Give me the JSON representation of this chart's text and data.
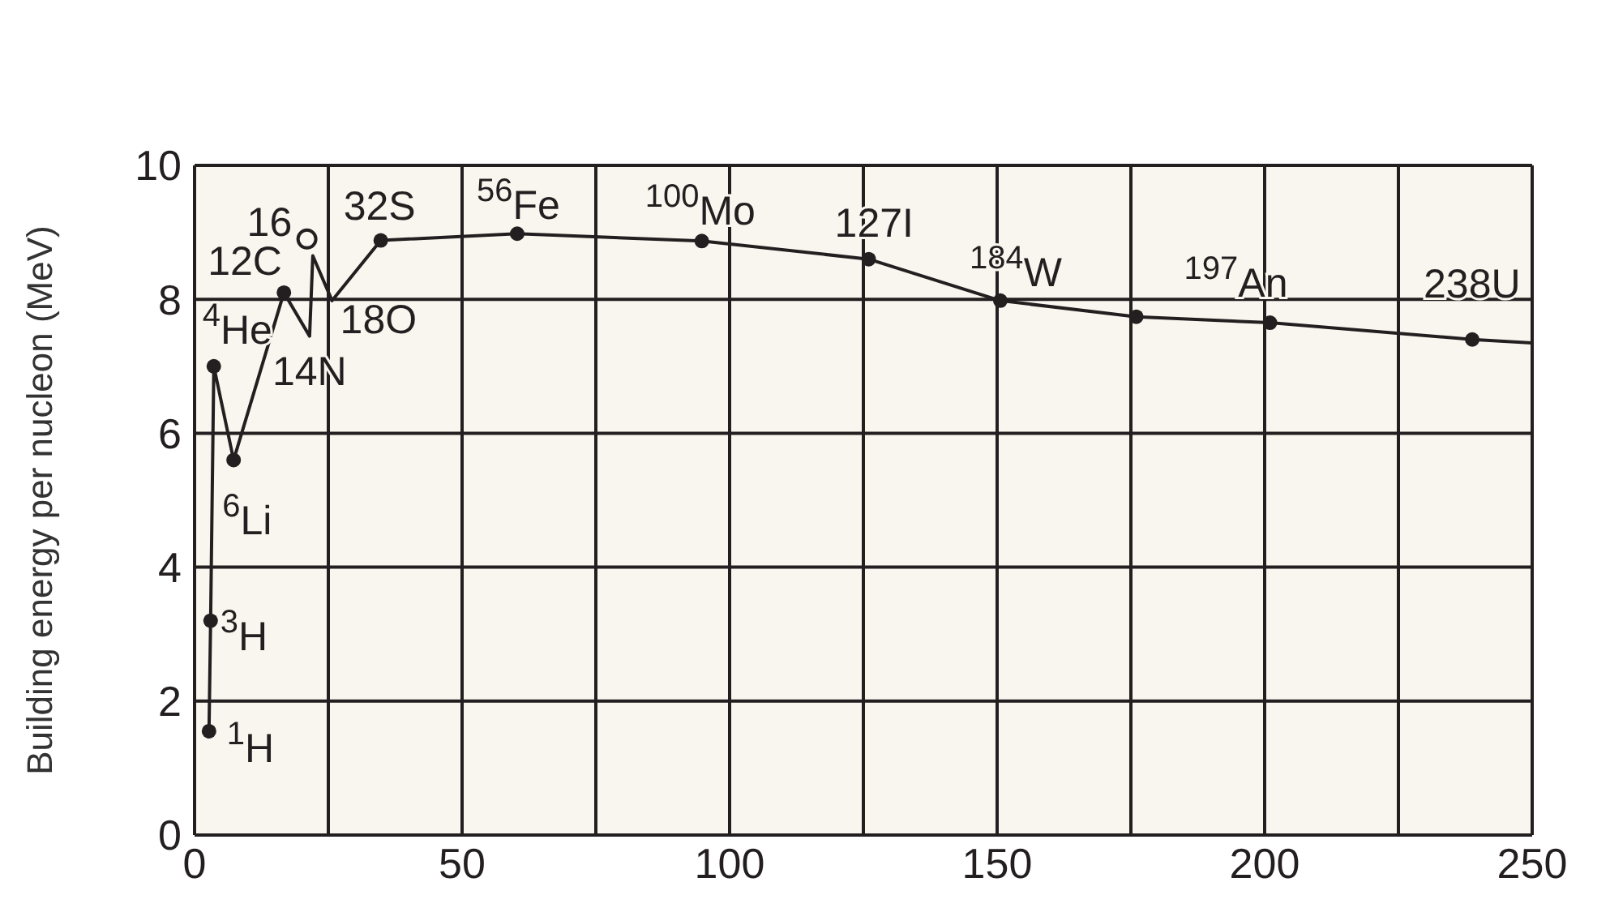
{
  "chart_data": {
    "type": "line",
    "ylabel": "Building energy per nucleon (MeV)",
    "xlim": [
      0,
      250
    ],
    "xticks": [
      0,
      {
        "value": 25,
        "label": null
      },
      50,
      {
        "value": 75,
        "label": null
      },
      100,
      {
        "value": 125,
        "label": null
      },
      150,
      {
        "value": 175,
        "label": null
      },
      200,
      {
        "value": 225,
        "label": null
      },
      250
    ],
    "ylim": [
      0,
      10
    ],
    "yticks": [
      0,
      2,
      4,
      6,
      8,
      10
    ],
    "grid": true,
    "series": [
      {
        "color": "#231f20",
        "marker": "none",
        "x": [
          2.7,
          3,
          3.6,
          7.3,
          16.7,
          21.5,
          22.1,
          25.7,
          34.8,
          60.3,
          94.8,
          126,
          150.6,
          176,
          201,
          238.8,
          250
        ],
        "values": [
          1.55,
          3.2,
          7.0,
          5.6,
          8.1,
          7.45,
          8.65,
          7.98,
          8.88,
          8.98,
          8.87,
          8.6,
          7.98,
          7.74,
          7.65,
          7.4,
          7.35
        ]
      },
      {
        "type": "scatter",
        "color": "#231f20",
        "marker": "circle",
        "x": [
          2.7,
          3,
          3.6,
          7.3,
          16.7,
          34.8,
          60.3,
          94.8,
          126,
          150.6,
          176,
          201,
          238.8
        ],
        "values": [
          1.55,
          3.2,
          7.0,
          5.6,
          8.1,
          8.88,
          8.98,
          8.87,
          8.6,
          7.98,
          7.74,
          7.65,
          7.4
        ]
      },
      {
        "type": "scatter",
        "color": "#231f20",
        "marker": "open circle",
        "x": [
          21
        ],
        "values": [
          8.9
        ]
      }
    ],
    "annotations": [
      {
        "text": "$^{1}$H",
        "x": 2.7,
        "y": 1.55
      },
      {
        "text": "$^{3}$H",
        "x": 3,
        "y": 3.2
      },
      {
        "text": "$^{4}$He",
        "x": 3.6,
        "y": 7.0
      },
      {
        "text": "$^{6}$Li",
        "x": 7.3,
        "y": 5.6
      },
      {
        "text": "12C",
        "x": 16.7,
        "y": 8.1
      },
      {
        "text": "14N",
        "x": 21.5,
        "y": 7.45
      },
      {
        "text": "16",
        "x": 21,
        "y": 8.9
      },
      {
        "text": "18O",
        "x": 25.7,
        "y": 7.98
      },
      {
        "text": "32S",
        "x": 34.8,
        "y": 8.88
      },
      {
        "text": "$^{56}$Fe",
        "x": 60.3,
        "y": 8.98
      },
      {
        "text": "$^{100}$Mo",
        "x": 94.8,
        "y": 8.87
      },
      {
        "text": "127I",
        "x": 126,
        "y": 8.6
      },
      {
        "text": "$^{184}$W",
        "x": 150.6,
        "y": 7.98
      },
      {
        "text": "$^{197}$An",
        "x": 201,
        "y": 7.65
      },
      {
        "text": "238U",
        "x": 238.8,
        "y": 7.4
      }
    ]
  }
}
